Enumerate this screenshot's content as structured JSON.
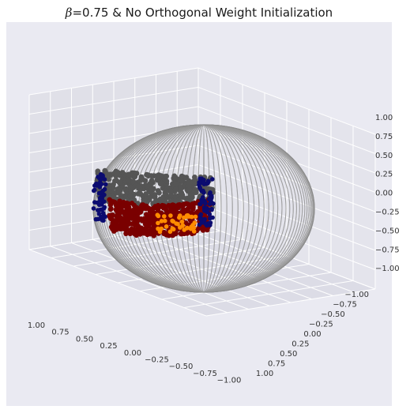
{
  "chart_data": {
    "type": "scatter",
    "title_symbol": "β",
    "title_text": "=0.75 & No Orthogonal Weight Initialization",
    "projection": "3d",
    "wireframe": "unit sphere",
    "grid": true,
    "x_ticks": [
      "1.00",
      "0.75",
      "0.50",
      "0.25",
      "0.00",
      "−0.25",
      "−0.50",
      "−0.75",
      "−1.00"
    ],
    "y_ticks": [
      "−1.00",
      "−0.75",
      "−0.50",
      "−0.25",
      "0.00",
      "0.25",
      "0.50",
      "0.75",
      "1.00"
    ],
    "z_ticks": [
      "1.00",
      "0.75",
      "0.50",
      "0.25",
      "0.00",
      "−0.25",
      "−0.50",
      "−0.75",
      "−1.00"
    ],
    "xlim": [
      -1,
      1
    ],
    "ylim": [
      -1,
      1
    ],
    "zlim": [
      -1,
      1
    ],
    "point_clusters": [
      {
        "color": "#555555",
        "region": "upper band",
        "approx_count": 420
      },
      {
        "color": "#7a0000",
        "region": "lower band",
        "approx_count": 520
      },
      {
        "color": "#0b0b70",
        "region": "edges",
        "approx_count": 120
      },
      {
        "color": "#ff8c00",
        "region": "lower band highlights",
        "approx_count": 40
      }
    ],
    "colors": {
      "background": "#e8e8f0",
      "sphere": "#9a9a9a",
      "grid": "#ffffff"
    }
  }
}
